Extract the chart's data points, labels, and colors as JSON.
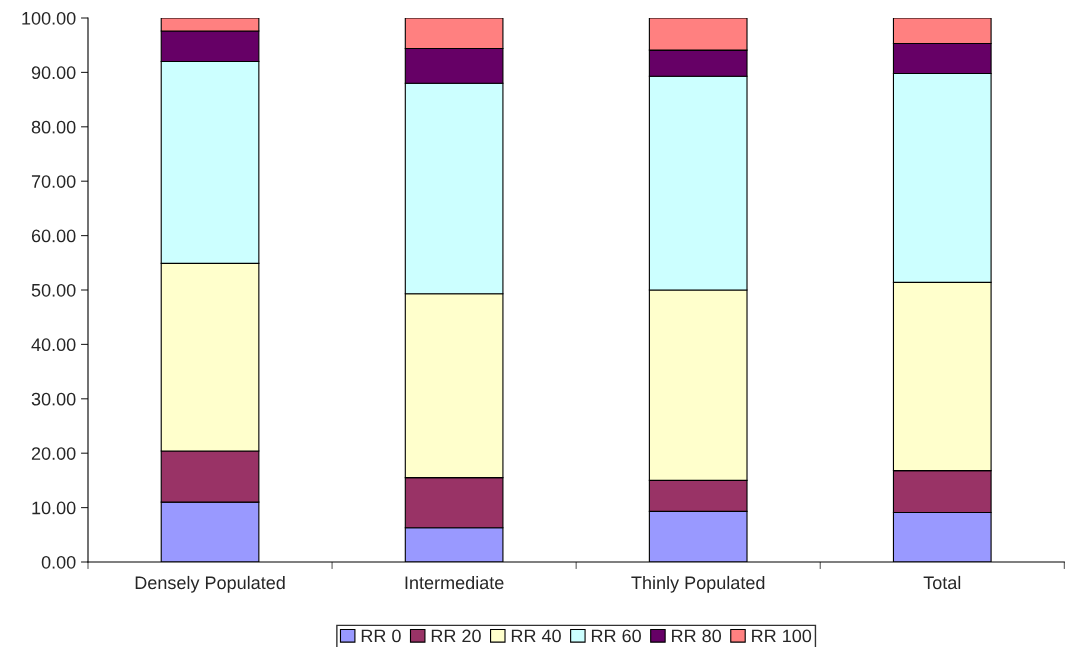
{
  "chart_data": {
    "type": "bar",
    "stacked": true,
    "categories": [
      "Densely Populated",
      "Intermediate",
      "Thinly Populated",
      "Total"
    ],
    "series": [
      {
        "name": "RR 0",
        "color": "#9999ff",
        "values": [
          11.0,
          6.3,
          9.3,
          9.1
        ]
      },
      {
        "name": "RR 20",
        "color": "#993366",
        "values": [
          9.4,
          9.2,
          5.7,
          7.7
        ]
      },
      {
        "name": "RR 40",
        "color": "#ffffcc",
        "values": [
          34.5,
          33.8,
          35.0,
          34.6
        ]
      },
      {
        "name": "RR 60",
        "color": "#ccffff",
        "values": [
          37.1,
          38.7,
          39.3,
          38.4
        ]
      },
      {
        "name": "RR 80",
        "color": "#660066",
        "values": [
          5.6,
          6.4,
          4.8,
          5.5
        ]
      },
      {
        "name": "RR 100",
        "color": "#ff8080",
        "values": [
          2.4,
          5.6,
          5.9,
          4.7
        ]
      }
    ],
    "ylim": [
      0,
      100
    ],
    "yticks": [
      {
        "value": 0,
        "label": "0.00"
      },
      {
        "value": 10,
        "label": "10.00"
      },
      {
        "value": 20,
        "label": "20.00"
      },
      {
        "value": 30,
        "label": "30.00"
      },
      {
        "value": 40,
        "label": "40.00"
      },
      {
        "value": 50,
        "label": "50.00"
      },
      {
        "value": 60,
        "label": "60.00"
      },
      {
        "value": 70,
        "label": "70.00"
      },
      {
        "value": 80,
        "label": "80.00"
      },
      {
        "value": 90,
        "label": "90.00"
      },
      {
        "value": 100,
        "label": "100.00"
      }
    ],
    "grid": false,
    "legend": "bottom"
  }
}
